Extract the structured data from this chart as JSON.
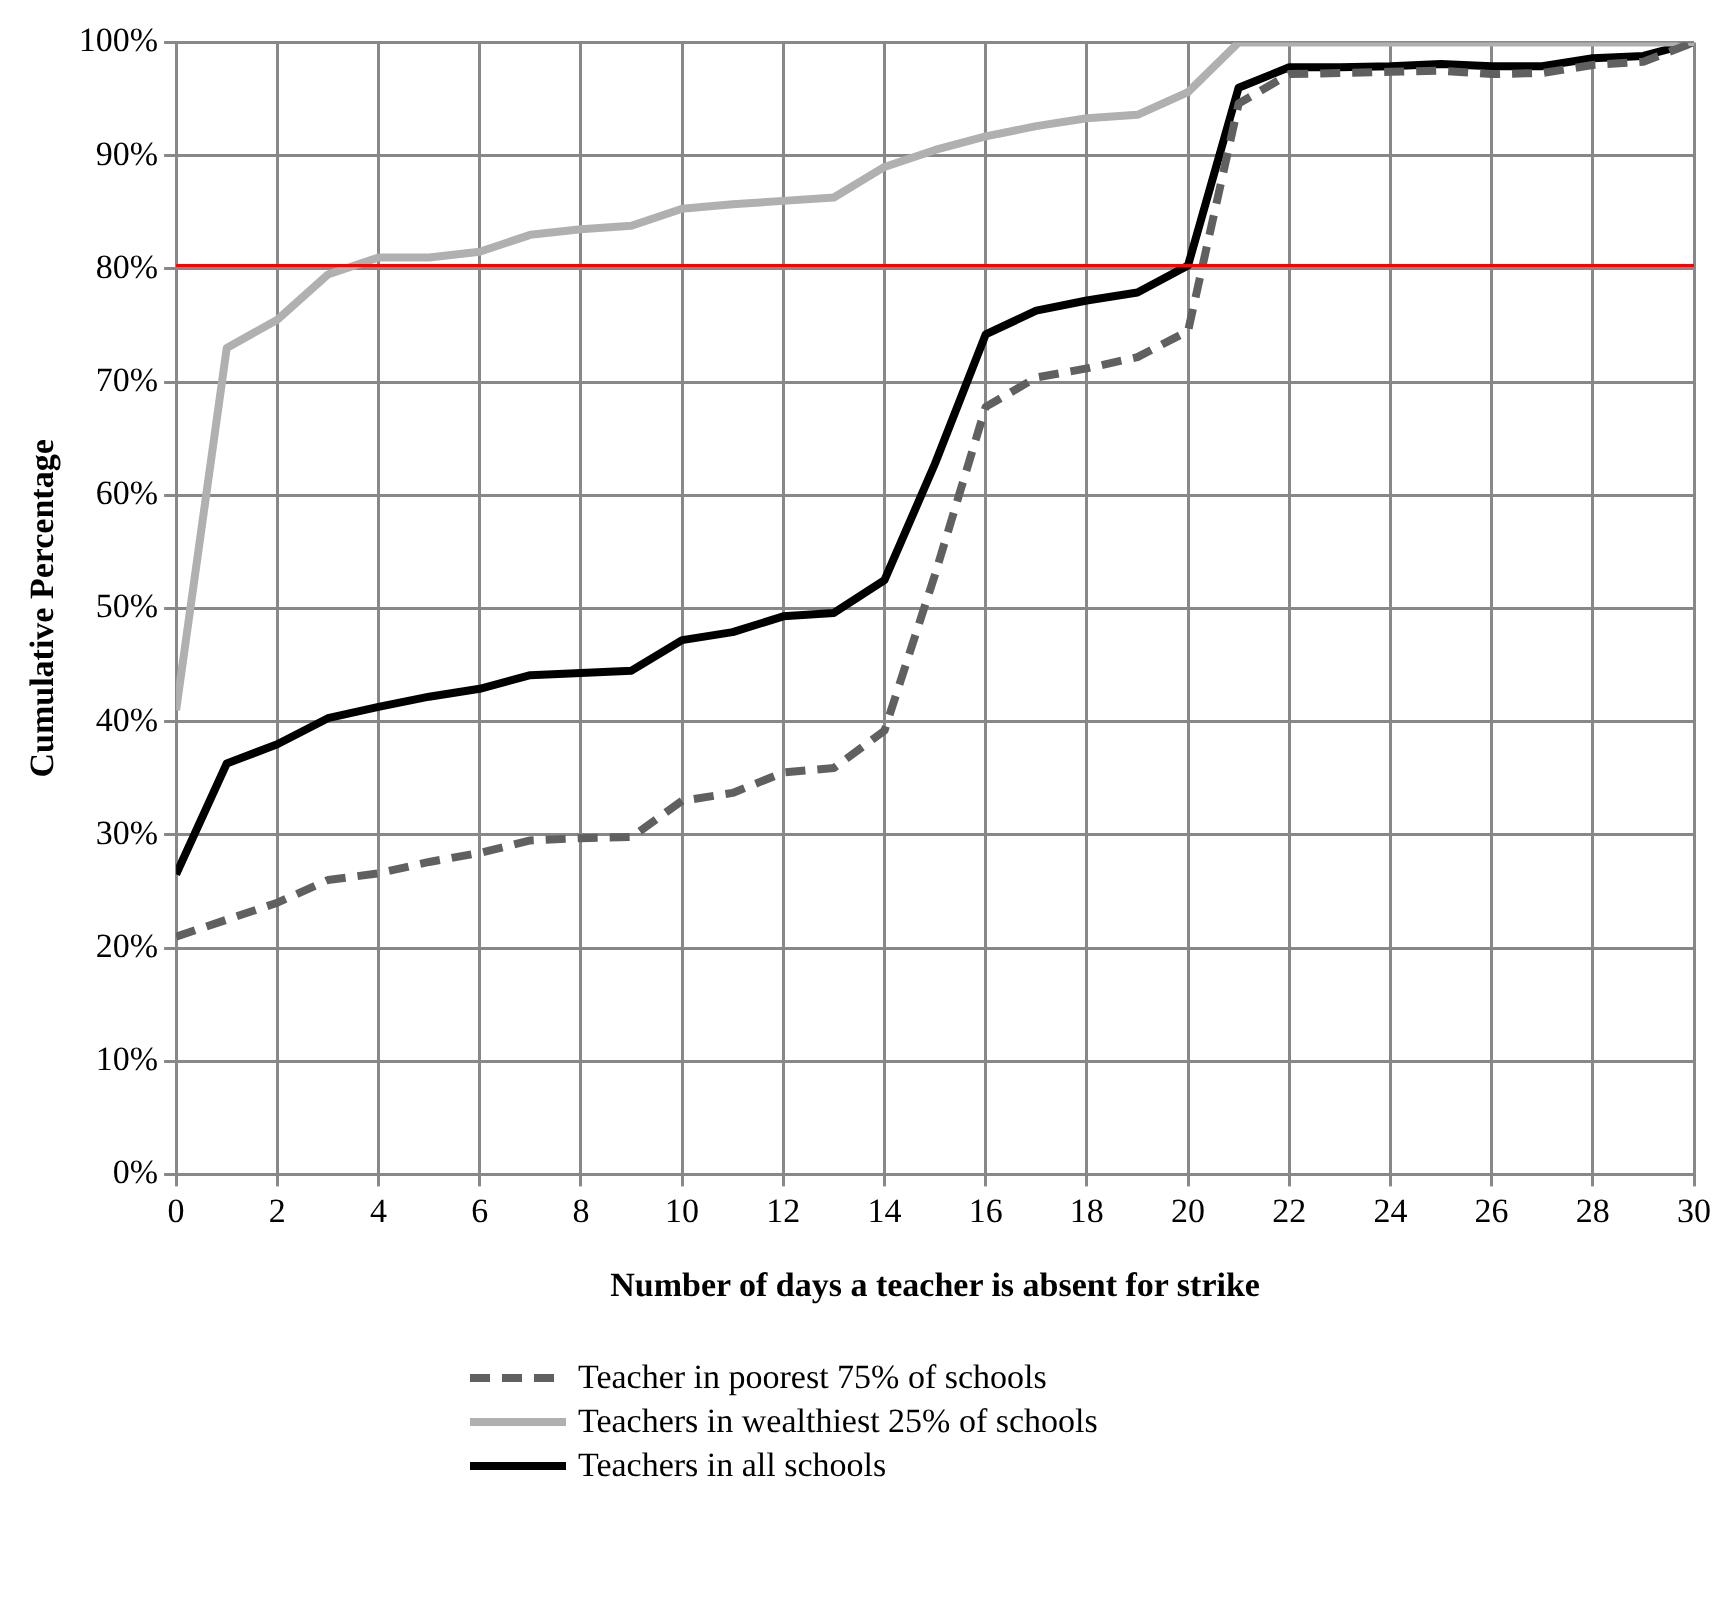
{
  "chart_data": {
    "type": "line",
    "xlabel": "Number of days a teacher is absent for strike",
    "ylabel": "Cumulative Percentage",
    "x": [
      0,
      1,
      2,
      3,
      4,
      5,
      6,
      7,
      8,
      9,
      10,
      11,
      12,
      13,
      14,
      15,
      16,
      17,
      18,
      19,
      20,
      21,
      22,
      23,
      24,
      25,
      26,
      27,
      28,
      29,
      30
    ],
    "series": [
      {
        "name": "Teacher in poorest 75% of schools",
        "color": "#606060",
        "line_style": "dashed",
        "values": [
          21,
          22.5,
          24,
          26,
          26.6,
          27.6,
          28.4,
          29.5,
          29.7,
          29.8,
          33,
          33.7,
          35.5,
          35.9,
          39.2,
          53,
          67.8,
          70.4,
          71.2,
          72.2,
          74.5,
          94.6,
          97.2,
          97.3,
          97.4,
          97.5,
          97.2,
          97.3,
          98,
          98.3,
          100
        ]
      },
      {
        "name": "Teachers in wealthiest 25% of schools",
        "color": "#b0b0b0",
        "line_style": "solid",
        "values": [
          41,
          73,
          75.5,
          79.5,
          81,
          81,
          81.5,
          83,
          83.5,
          83.8,
          85.3,
          85.7,
          86,
          86.3,
          89,
          90.5,
          91.7,
          92.6,
          93.3,
          93.6,
          95.6,
          100,
          100,
          100,
          100,
          100,
          100,
          100,
          100,
          100,
          100
        ]
      },
      {
        "name": "Teachers in all schools",
        "color": "#000000",
        "line_style": "solid",
        "values": [
          26.5,
          36.3,
          38,
          40.3,
          41.3,
          42.2,
          42.9,
          44.1,
          44.3,
          44.5,
          47.2,
          47.9,
          49.3,
          49.6,
          52.5,
          62.8,
          74.2,
          76.3,
          77.2,
          77.9,
          80.3,
          96,
          97.8,
          97.8,
          97.9,
          98.1,
          97.9,
          97.9,
          98.6,
          98.8,
          100
        ]
      }
    ],
    "xlim": [
      0,
      30
    ],
    "xticks": [
      0,
      2,
      4,
      6,
      8,
      10,
      12,
      14,
      16,
      18,
      20,
      22,
      24,
      26,
      28,
      30
    ],
    "ylim": [
      0,
      100
    ],
    "yticks": [
      {
        "value": 0,
        "label": "0%"
      },
      {
        "value": 10,
        "label": "10%"
      },
      {
        "value": 20,
        "label": "20%"
      },
      {
        "value": 30,
        "label": "30%"
      },
      {
        "value": 40,
        "label": "40%"
      },
      {
        "value": 50,
        "label": "50%"
      },
      {
        "value": 60,
        "label": "60%"
      },
      {
        "value": 70,
        "label": "70%"
      },
      {
        "value": 80,
        "label": "80%"
      },
      {
        "value": 90,
        "label": "90%"
      },
      {
        "value": 100,
        "label": "100%"
      }
    ],
    "ref_lines": [
      {
        "axis": "y",
        "value": 80.3,
        "color": "#ff0000"
      }
    ],
    "grid": true,
    "legend": "bottom",
    "marker": "none"
  }
}
